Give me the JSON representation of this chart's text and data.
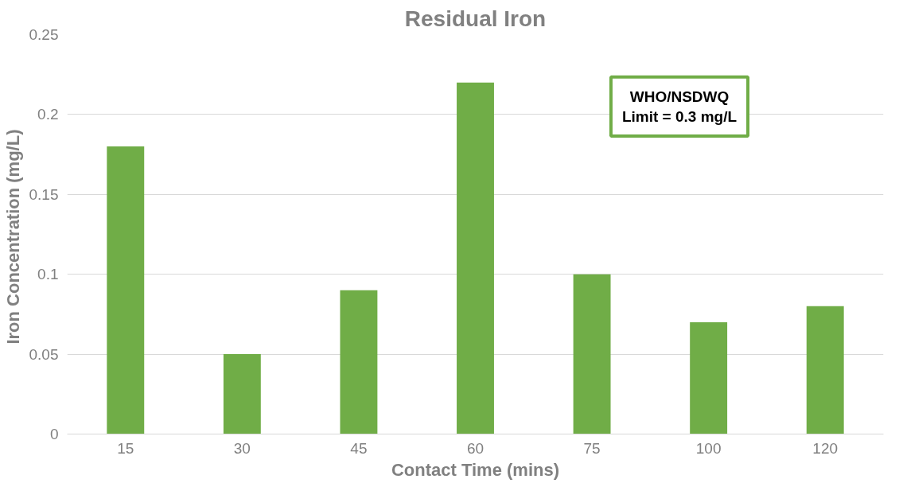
{
  "chart_data": {
    "type": "bar",
    "title": "Residual Iron",
    "xlabel": "Contact Time (mins)",
    "ylabel": "Iron Concentration  (mg/L)",
    "categories": [
      "15",
      "30",
      "45",
      "60",
      "75",
      "100",
      "120"
    ],
    "values": [
      0.18,
      0.05,
      0.09,
      0.22,
      0.1,
      0.07,
      0.08
    ],
    "color": "#70ad47",
    "ylim": [
      0,
      0.25
    ],
    "yticks": [
      0,
      0.05,
      0.1,
      0.15,
      0.2,
      0.25
    ],
    "grid": "y",
    "annotations": [
      "WHO/NSDWQ\nLimit = 0.3 mg/L"
    ]
  }
}
